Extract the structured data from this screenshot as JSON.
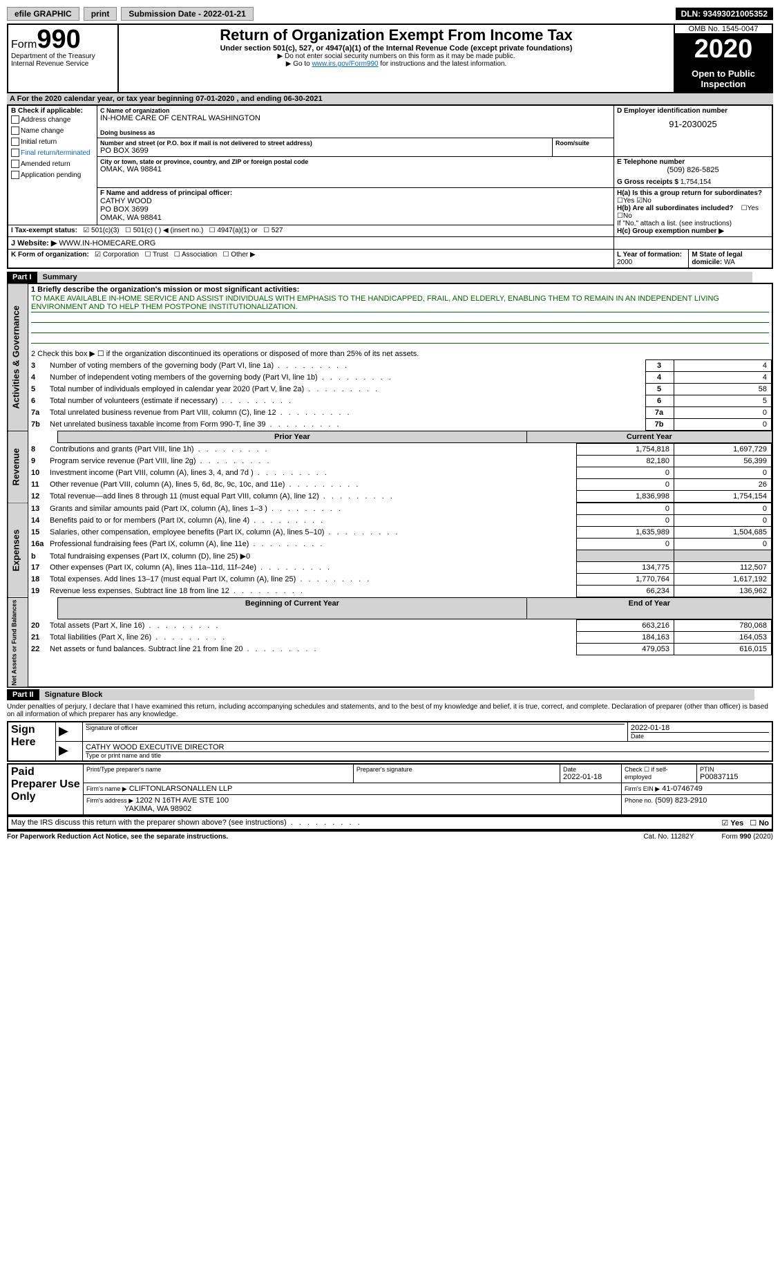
{
  "topbar": {
    "efile": "efile GRAPHIC",
    "print": "print",
    "submission": "Submission Date - 2022-01-21",
    "dln": "DLN: 93493021005352"
  },
  "header": {
    "form_label": "Form",
    "form_num": "990",
    "dept": "Department of the Treasury\nInternal Revenue Service",
    "title": "Return of Organization Exempt From Income Tax",
    "subtitle": "Under section 501(c), 527, or 4947(a)(1) of the Internal Revenue Code (except private foundations)",
    "note1": "▶ Do not enter social security numbers on this form as it may be made public.",
    "note2_pre": "▶ Go to ",
    "note2_link": "www.irs.gov/Form990",
    "note2_post": " for instructions and the latest information.",
    "omb": "OMB No. 1545-0047",
    "year": "2020",
    "inspection": "Open to Public Inspection"
  },
  "period": {
    "text": "For the 2020 calendar year, or tax year beginning 07-01-2020   , and ending 06-30-2021"
  },
  "sectionB": {
    "label": "B Check if applicable:",
    "items": [
      "Address change",
      "Name change",
      "Initial return",
      "Final return/terminated",
      "Amended return",
      "Application pending"
    ]
  },
  "sectionC": {
    "name_label": "C Name of organization",
    "name": "IN-HOME CARE OF CENTRAL WASHINGTON",
    "dba_label": "Doing business as",
    "addr_label": "Number and street (or P.O. box if mail is not delivered to street address)",
    "room_label": "Room/suite",
    "addr": "PO BOX 3699",
    "city_label": "City or town, state or province, country, and ZIP or foreign postal code",
    "city": "OMAK, WA  98841"
  },
  "sectionD": {
    "label": "D Employer identification number",
    "value": "91-2030025"
  },
  "sectionE": {
    "label": "E Telephone number",
    "value": "(509) 826-5825"
  },
  "sectionG": {
    "label": "G Gross receipts $",
    "value": "1,754,154"
  },
  "sectionF": {
    "label": "F Name and address of principal officer:",
    "name": "CATHY WOOD",
    "addr1": "PO BOX 3699",
    "addr2": "OMAK, WA  98841"
  },
  "sectionH": {
    "a_label": "H(a)  Is this a group return for subordinates?",
    "a_yes": "Yes",
    "a_no": "No",
    "b_label": "H(b)  Are all subordinates included?",
    "b_note": "If \"No,\" attach a list. (see instructions)",
    "c_label": "H(c)  Group exemption number ▶"
  },
  "sectionI": {
    "label": "I  Tax-exempt status:",
    "opts": [
      "501(c)(3)",
      "501(c) (  ) ◀ (insert no.)",
      "4947(a)(1) or",
      "527"
    ]
  },
  "sectionJ": {
    "label": "J  Website: ▶",
    "value": "WWW.IN-HOMECARE.ORG"
  },
  "sectionK": {
    "label": "K Form of organization:",
    "opts": [
      "Corporation",
      "Trust",
      "Association",
      "Other ▶"
    ]
  },
  "sectionL": {
    "label": "L Year of formation:",
    "value": "2000"
  },
  "sectionM": {
    "label": "M State of legal domicile:",
    "value": "WA"
  },
  "part1": {
    "header": "Part I",
    "title": "Summary",
    "line1_label": "1  Briefly describe the organization's mission or most significant activities:",
    "mission": "TO MAKE AVAILABLE IN-HOME SERVICE AND ASSIST INDIVIDUALS WITH EMPHASIS TO THE HANDICAPPED, FRAIL, AND ELDERLY, ENABLING THEM TO REMAIN IN AN INDEPENDENT LIVING ENVIRONMENT AND TO HELP THEM POSTPONE INSTITUTIONALIZATION.",
    "line2": "2  Check this box ▶ ☐  if the organization discontinued its operations or disposed of more than 25% of its net assets.",
    "governance_label": "Activities & Governance",
    "revenue_label": "Revenue",
    "expenses_label": "Expenses",
    "netassets_label": "Net Assets or Fund Balances",
    "gov_lines": [
      {
        "n": "3",
        "t": "Number of voting members of the governing body (Part VI, line 1a)",
        "v": "4"
      },
      {
        "n": "4",
        "t": "Number of independent voting members of the governing body (Part VI, line 1b)",
        "v": "4"
      },
      {
        "n": "5",
        "t": "Total number of individuals employed in calendar year 2020 (Part V, line 2a)",
        "v": "58"
      },
      {
        "n": "6",
        "t": "Total number of volunteers (estimate if necessary)",
        "v": "5"
      },
      {
        "n": "7a",
        "t": "Total unrelated business revenue from Part VIII, column (C), line 12",
        "v": "0"
      },
      {
        "n": "7b",
        "t": "Net unrelated business taxable income from Form 990-T, line 39",
        "v": "0"
      }
    ],
    "col_prior": "Prior Year",
    "col_current": "Current Year",
    "col_begin": "Beginning of Current Year",
    "col_end": "End of Year",
    "rev_lines": [
      {
        "n": "8",
        "t": "Contributions and grants (Part VIII, line 1h)",
        "p": "1,754,818",
        "c": "1,697,729"
      },
      {
        "n": "9",
        "t": "Program service revenue (Part VIII, line 2g)",
        "p": "82,180",
        "c": "56,399"
      },
      {
        "n": "10",
        "t": "Investment income (Part VIII, column (A), lines 3, 4, and 7d )",
        "p": "0",
        "c": "0"
      },
      {
        "n": "11",
        "t": "Other revenue (Part VIII, column (A), lines 5, 6d, 8c, 9c, 10c, and 11e)",
        "p": "0",
        "c": "26"
      },
      {
        "n": "12",
        "t": "Total revenue—add lines 8 through 11 (must equal Part VIII, column (A), line 12)",
        "p": "1,836,998",
        "c": "1,754,154"
      }
    ],
    "exp_lines": [
      {
        "n": "13",
        "t": "Grants and similar amounts paid (Part IX, column (A), lines 1–3 )",
        "p": "0",
        "c": "0"
      },
      {
        "n": "14",
        "t": "Benefits paid to or for members (Part IX, column (A), line 4)",
        "p": "0",
        "c": "0"
      },
      {
        "n": "15",
        "t": "Salaries, other compensation, employee benefits (Part IX, column (A), lines 5–10)",
        "p": "1,635,989",
        "c": "1,504,685"
      },
      {
        "n": "16a",
        "t": "Professional fundraising fees (Part IX, column (A), line 11e)",
        "p": "0",
        "c": "0"
      },
      {
        "n": "b",
        "t": "Total fundraising expenses (Part IX, column (D), line 25) ▶0",
        "p": "",
        "c": ""
      },
      {
        "n": "17",
        "t": "Other expenses (Part IX, column (A), lines 11a–11d, 11f–24e)",
        "p": "134,775",
        "c": "112,507"
      },
      {
        "n": "18",
        "t": "Total expenses. Add lines 13–17 (must equal Part IX, column (A), line 25)",
        "p": "1,770,764",
        "c": "1,617,192"
      },
      {
        "n": "19",
        "t": "Revenue less expenses. Subtract line 18 from line 12",
        "p": "66,234",
        "c": "136,962"
      }
    ],
    "na_lines": [
      {
        "n": "20",
        "t": "Total assets (Part X, line 16)",
        "p": "663,216",
        "c": "780,068"
      },
      {
        "n": "21",
        "t": "Total liabilities (Part X, line 26)",
        "p": "184,163",
        "c": "164,053"
      },
      {
        "n": "22",
        "t": "Net assets or fund balances. Subtract line 21 from line 20",
        "p": "479,053",
        "c": "616,015"
      }
    ]
  },
  "part2": {
    "header": "Part II",
    "title": "Signature Block",
    "penalty": "Under penalties of perjury, I declare that I have examined this return, including accompanying schedules and statements, and to the best of my knowledge and belief, it is true, correct, and complete. Declaration of preparer (other than officer) is based on all information of which preparer has any knowledge.",
    "sign_here": "Sign Here",
    "sig_officer": "Signature of officer",
    "sig_date_label": "Date",
    "sig_date": "2022-01-18",
    "officer_name": "CATHY WOOD  EXECUTIVE DIRECTOR",
    "officer_name_label": "Type or print name and title",
    "paid_prep": "Paid Preparer Use Only",
    "prep_name_label": "Print/Type preparer's name",
    "prep_sig_label": "Preparer's signature",
    "prep_date": "2022-01-18",
    "prep_check": "Check ☐ if self-employed",
    "ptin_label": "PTIN",
    "ptin": "P00837115",
    "firm_name_label": "Firm's name    ▶",
    "firm_name": "CLIFTONLARSONALLEN LLP",
    "firm_ein_label": "Firm's EIN ▶",
    "firm_ein": "41-0746749",
    "firm_addr_label": "Firm's address ▶",
    "firm_addr": "1202 N 16TH AVE STE 100",
    "firm_city": "YAKIMA, WA  98902",
    "firm_phone_label": "Phone no.",
    "firm_phone": "(509) 823-2910",
    "discuss": "May the IRS discuss this return with the preparer shown above? (see instructions)",
    "yes": "Yes",
    "no": "No"
  },
  "footer": {
    "paperwork": "For Paperwork Reduction Act Notice, see the separate instructions.",
    "cat": "Cat. No. 11282Y",
    "form": "Form 990 (2020)"
  }
}
